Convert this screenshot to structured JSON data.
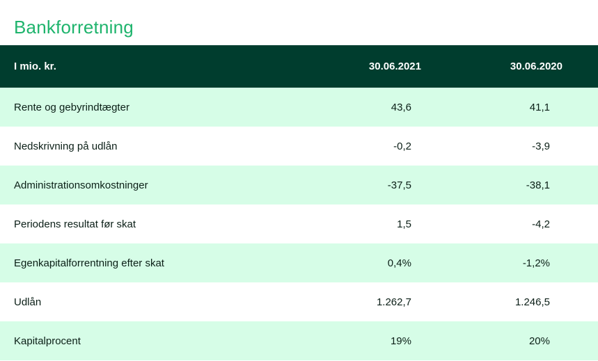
{
  "title": "Bankforretning",
  "table": {
    "headers": [
      "I mio. kr.",
      "30.06.2021",
      "30.06.2020"
    ],
    "rows": [
      {
        "label": "Rente og gebyrindtægter",
        "v2021": "43,6",
        "v2020": "41,1"
      },
      {
        "label": "Nedskrivning på udlån",
        "v2021": "-0,2",
        "v2020": "-3,9"
      },
      {
        "label": "Administrationsomkostninger",
        "v2021": "-37,5",
        "v2020": "-38,1"
      },
      {
        "label": "Periodens resultat før skat",
        "v2021": "1,5",
        "v2020": "-4,2"
      },
      {
        "label": "Egenkapitalforrentning efter skat",
        "v2021": "0,4%",
        "v2020": "-1,2%"
      },
      {
        "label": "Udlån",
        "v2021": "1.262,7",
        "v2020": "1.246,5"
      },
      {
        "label": "Kapitalprocent",
        "v2021": "19%",
        "v2020": "20%"
      }
    ]
  },
  "colors": {
    "title": "#1fb46d",
    "header_bg": "#003d2e",
    "row_alt_bg": "#d6fde7"
  }
}
